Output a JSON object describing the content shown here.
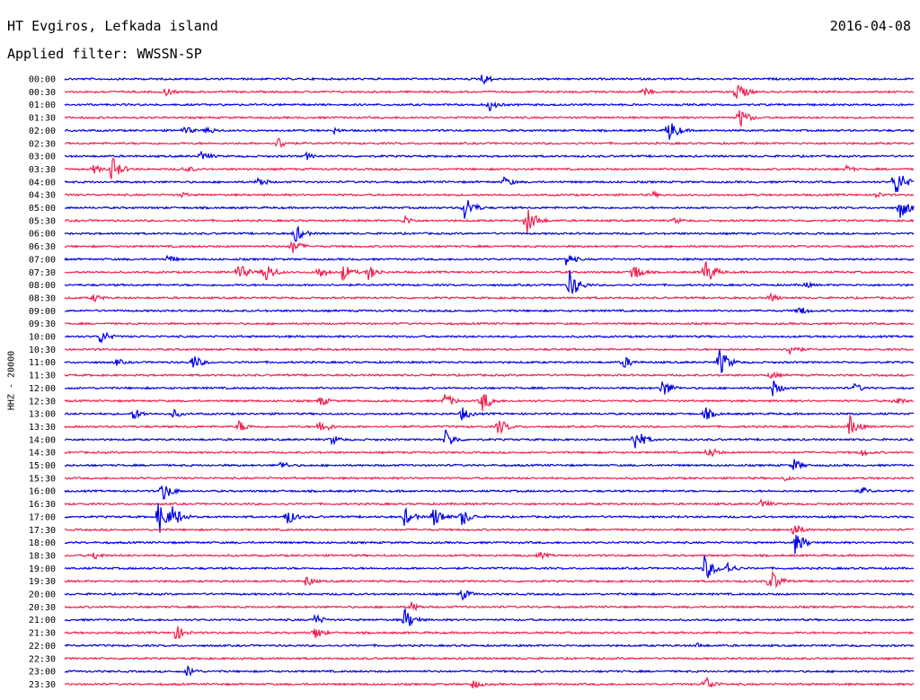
{
  "header": {
    "station": "HT Evgiros, Lefkada island",
    "date": "2016-04-08",
    "filter": "Applied filter: WWSSN-SP"
  },
  "chart_data": {
    "type": "line",
    "ylabel": "HHZ - 20000",
    "row_labels": [
      "00:00",
      "00:30",
      "01:00",
      "01:30",
      "02:00",
      "02:30",
      "03:00",
      "03:30",
      "04:00",
      "04:30",
      "05:00",
      "05:30",
      "06:00",
      "06:30",
      "07:00",
      "07:30",
      "08:00",
      "08:30",
      "09:00",
      "09:30",
      "10:00",
      "10:30",
      "11:00",
      "11:30",
      "12:00",
      "12:30",
      "13:00",
      "13:30",
      "14:00",
      "14:30",
      "15:00",
      "15:30",
      "16:00",
      "16:30",
      "17:00",
      "17:30",
      "18:00",
      "18:30",
      "19:00",
      "19:30",
      "20:00",
      "20:30",
      "21:00",
      "21:30",
      "22:00",
      "22:30",
      "23:00",
      "23:30"
    ],
    "series_colors": [
      "#0000e6",
      "#f0204f"
    ],
    "trace_minutes_per_row": 30,
    "events": [
      [
        0,
        14.7,
        8
      ],
      [
        1,
        3.5,
        6
      ],
      [
        1,
        20.4,
        6
      ],
      [
        1,
        23.7,
        14
      ],
      [
        2,
        15.0,
        7
      ],
      [
        3,
        23.8,
        14
      ],
      [
        4,
        4.2,
        6
      ],
      [
        4,
        5.0,
        6
      ],
      [
        4,
        9.5,
        4
      ],
      [
        4,
        21.3,
        16
      ],
      [
        5,
        7.5,
        9
      ],
      [
        6,
        4.8,
        8
      ],
      [
        6,
        8.5,
        5
      ],
      [
        7,
        1.0,
        6
      ],
      [
        7,
        1.6,
        18
      ],
      [
        7,
        4.2,
        6
      ],
      [
        7,
        27.6,
        5
      ],
      [
        8,
        6.8,
        7
      ],
      [
        8,
        15.5,
        7
      ],
      [
        8,
        29.3,
        20
      ],
      [
        9,
        4.1,
        4
      ],
      [
        9,
        20.7,
        5
      ],
      [
        9,
        28.6,
        5
      ],
      [
        10,
        14.1,
        16
      ],
      [
        10,
        29.5,
        14
      ],
      [
        11,
        12.0,
        6
      ],
      [
        11,
        16.3,
        18
      ],
      [
        11,
        21.5,
        5
      ],
      [
        12,
        8.1,
        12
      ],
      [
        13,
        8.0,
        10
      ],
      [
        14,
        3.6,
        6
      ],
      [
        14,
        17.7,
        9
      ],
      [
        15,
        6.1,
        12
      ],
      [
        15,
        7.0,
        16
      ],
      [
        15,
        8.9,
        10
      ],
      [
        15,
        9.8,
        11
      ],
      [
        15,
        10.7,
        10
      ],
      [
        15,
        20.0,
        14
      ],
      [
        15,
        22.6,
        18
      ],
      [
        16,
        17.8,
        20
      ],
      [
        16,
        26.1,
        5
      ],
      [
        17,
        1.0,
        6
      ],
      [
        17,
        24.9,
        6
      ],
      [
        18,
        25.9,
        7
      ],
      [
        20,
        1.2,
        10
      ],
      [
        21,
        25.6,
        8
      ],
      [
        22,
        1.8,
        5
      ],
      [
        22,
        4.5,
        10
      ],
      [
        22,
        19.7,
        9
      ],
      [
        22,
        23.1,
        18
      ],
      [
        23,
        24.9,
        6
      ],
      [
        24,
        21.1,
        12
      ],
      [
        24,
        25.0,
        10
      ],
      [
        24,
        27.9,
        6
      ],
      [
        25,
        9.0,
        7
      ],
      [
        25,
        13.4,
        10
      ],
      [
        25,
        14.7,
        15
      ],
      [
        25,
        29.3,
        7
      ],
      [
        26,
        2.4,
        8
      ],
      [
        26,
        3.8,
        6
      ],
      [
        26,
        14.0,
        9
      ],
      [
        26,
        22.6,
        9
      ],
      [
        27,
        6.1,
        9
      ],
      [
        27,
        9.0,
        10
      ],
      [
        27,
        15.3,
        11
      ],
      [
        27,
        27.7,
        14
      ],
      [
        28,
        9.4,
        7
      ],
      [
        28,
        13.4,
        14
      ],
      [
        28,
        20.1,
        16
      ],
      [
        29,
        22.7,
        9
      ],
      [
        29,
        28.1,
        6
      ],
      [
        30,
        7.6,
        6
      ],
      [
        30,
        25.7,
        9
      ],
      [
        31,
        25.4,
        4
      ],
      [
        32,
        3.4,
        14
      ],
      [
        32,
        28.1,
        6
      ],
      [
        33,
        24.6,
        7
      ],
      [
        34,
        3.3,
        22
      ],
      [
        34,
        3.8,
        14
      ],
      [
        34,
        7.8,
        11
      ],
      [
        34,
        12.0,
        11
      ],
      [
        34,
        13.0,
        14
      ],
      [
        34,
        14.0,
        12
      ],
      [
        35,
        25.7,
        10
      ],
      [
        36,
        25.8,
        14
      ],
      [
        37,
        1.0,
        6
      ],
      [
        37,
        16.7,
        6
      ],
      [
        38,
        22.6,
        16
      ],
      [
        38,
        23.3,
        10
      ],
      [
        39,
        8.5,
        7
      ],
      [
        39,
        24.9,
        16
      ],
      [
        40,
        14.0,
        8
      ],
      [
        41,
        12.2,
        7
      ],
      [
        42,
        8.8,
        8
      ],
      [
        42,
        12.0,
        14
      ],
      [
        43,
        3.9,
        10
      ],
      [
        43,
        8.8,
        9
      ],
      [
        44,
        22.3,
        4
      ],
      [
        46,
        4.3,
        8
      ],
      [
        47,
        14.4,
        6
      ],
      [
        47,
        22.6,
        11
      ]
    ]
  }
}
